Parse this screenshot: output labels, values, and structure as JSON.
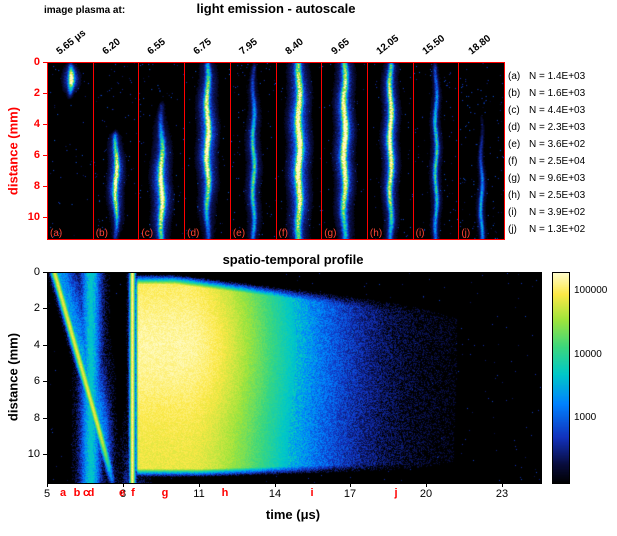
{
  "colors": {
    "accent_red": "#ff0000",
    "axis_black": "#000000",
    "panel_background": "#000000"
  },
  "top_panel": {
    "pre_title": "image plasma at:",
    "title": "light emission - autoscale",
    "ylabel": "distance (mm)",
    "yticks": [
      "0",
      "2",
      "4",
      "6",
      "8",
      "10"
    ],
    "frames": [
      {
        "tag": "(a)",
        "time_label": "5.65 μs",
        "n_value": "N = 1.4E+03",
        "streak": {
          "d0": 0.2,
          "d1": 2.2,
          "peak": 1.0,
          "sd": 0.55,
          "amp": 1.0,
          "core": 1.6,
          "halo": 5.0,
          "speckle": 0.006
        }
      },
      {
        "tag": "(b)",
        "time_label": "6.20",
        "n_value": "N = 1.6E+03",
        "streak": {
          "d0": 4.8,
          "d1": 11.3,
          "peak": 7.6,
          "sd": 2.0,
          "amp": 0.95,
          "core": 1.4,
          "halo": 5.0,
          "speckle": 0.01
        }
      },
      {
        "tag": "(c)",
        "time_label": "6.55",
        "n_value": "N = 4.4E+03",
        "streak": {
          "d0": 2.8,
          "d1": 11.4,
          "peak": 8.2,
          "sd": 2.6,
          "amp": 1.0,
          "core": 1.6,
          "halo": 6.0,
          "speckle": 0.01
        }
      },
      {
        "tag": "(d)",
        "time_label": "6.75",
        "n_value": "N = 2.3E+03",
        "streak": {
          "d0": 0.2,
          "d1": 11.4,
          "peak": 5.0,
          "sd": 3.6,
          "amp": 1.0,
          "core": 1.6,
          "halo": 6.0,
          "speckle": 0.008
        }
      },
      {
        "tag": "(e)",
        "time_label": "7.95",
        "n_value": "N = 3.6E+02",
        "streak": {
          "d0": 0.3,
          "d1": 11.4,
          "peak": 7.0,
          "sd": 4.0,
          "amp": 0.55,
          "core": 1.3,
          "halo": 5.0,
          "speckle": 0.012
        }
      },
      {
        "tag": "(f)",
        "time_label": "8.40",
        "n_value": "N = 2.5E+04",
        "streak": {
          "d0": 0.1,
          "d1": 11.4,
          "peak": 5.5,
          "sd": 5.0,
          "amp": 1.05,
          "core": 2.0,
          "halo": 7.0,
          "speckle": 0.008
        }
      },
      {
        "tag": "(g)",
        "time_label": "9.65",
        "n_value": "N = 9.6E+03",
        "streak": {
          "d0": 0.1,
          "d1": 11.4,
          "peak": 5.0,
          "sd": 4.6,
          "amp": 1.0,
          "core": 1.8,
          "halo": 6.0,
          "speckle": 0.008
        }
      },
      {
        "tag": "(h)",
        "time_label": "12.05",
        "n_value": "N = 2.5E+03",
        "streak": {
          "d0": 0.2,
          "d1": 11.4,
          "peak": 5.0,
          "sd": 4.4,
          "amp": 0.95,
          "core": 1.5,
          "halo": 5.0,
          "speckle": 0.008
        }
      },
      {
        "tag": "(i)",
        "time_label": "15.50",
        "n_value": "N = 3.9E+02",
        "streak": {
          "d0": 0.3,
          "d1": 11.4,
          "peak": 6.5,
          "sd": 4.5,
          "amp": 0.5,
          "core": 1.2,
          "halo": 4.0,
          "speckle": 0.014
        }
      },
      {
        "tag": "(j)",
        "time_label": "18.80",
        "n_value": "N = 1.3E+02",
        "streak": {
          "d0": 3.5,
          "d1": 11.4,
          "peak": 9.5,
          "sd": 3.0,
          "amp": 0.38,
          "core": 1.1,
          "halo": 3.5,
          "speckle": 0.016
        }
      }
    ]
  },
  "bottom_panel": {
    "title": "spatio-temporal profile",
    "xlabel": "time (μs)",
    "ylabel": "distance (mm)",
    "xticks": [
      "5",
      "8",
      "11",
      "14",
      "17",
      "20",
      "23"
    ],
    "yticks": [
      "0",
      "2",
      "4",
      "6",
      "8",
      "10"
    ],
    "markers": [
      {
        "letter": "a",
        "time_us": 5.65
      },
      {
        "letter": "b",
        "time_us": 6.2
      },
      {
        "letter": "c",
        "time_us": 6.55
      },
      {
        "letter": "d",
        "time_us": 6.75
      },
      {
        "letter": "e",
        "time_us": 7.95
      },
      {
        "letter": "f",
        "time_us": 8.4
      },
      {
        "letter": "g",
        "time_us": 9.65
      },
      {
        "letter": "h",
        "time_us": 12.05
      },
      {
        "letter": "i",
        "time_us": 15.5
      },
      {
        "letter": "j",
        "time_us": 18.8
      }
    ],
    "colorbar_ticks": [
      "100000",
      "10000",
      "1000"
    ]
  },
  "chart_data": [
    {
      "type": "heatmap",
      "title": "spatio-temporal profile",
      "xlabel": "time (μs)",
      "ylabel": "distance (mm)",
      "x_range": [
        5,
        24.5
      ],
      "y_range_mm": [
        0,
        11.5
      ],
      "grid": false,
      "colorbar": {
        "scale": "log",
        "ticks": [
          1000,
          10000,
          100000
        ],
        "approx_range": [
          100,
          200000
        ],
        "position": "right"
      },
      "annotations": [
        {
          "text": "a",
          "x_us": 5.65
        },
        {
          "text": "b",
          "x_us": 6.2
        },
        {
          "text": "c",
          "x_us": 6.55
        },
        {
          "text": "d",
          "x_us": 6.75
        },
        {
          "text": "e",
          "x_us": 7.95
        },
        {
          "text": "f",
          "x_us": 8.4
        },
        {
          "text": "g",
          "x_us": 9.65
        },
        {
          "text": "h",
          "x_us": 12.05
        },
        {
          "text": "i",
          "x_us": 15.5
        },
        {
          "text": "j",
          "x_us": 18.8
        }
      ],
      "features": [
        "ignition front sweeps from 0 mm at ~5.3 μs down to ~11 mm at ~7.6 μs (bright diagonal line with blue wake)",
        "cyan vertical band across all depths near 6.6-6.8 μs",
        "dark gap with black blob at 7.4-8.1 μs below ~6 mm",
        "very bright narrow vertical flash at ~8.3 μs spanning all depths",
        "broad intense emission plateau (~100000 counts) from ~8.5 to ~11 μs decaying through green (~14 μs) and blue (~17 μs) to speckled black by ~20 μs",
        "dark wedge grows from the top edge after ~10 μs; bottom edge (>11 mm) mostly dark"
      ]
    },
    {
      "type": "heatmap",
      "title": "light emission - autoscale",
      "subtitle": "image plasma at:",
      "ylabel": "distance (mm)",
      "y_range_mm": [
        0,
        11.5
      ],
      "frames": [
        {
          "label": "(a)",
          "time_us": 5.65,
          "N": 1400
        },
        {
          "label": "(b)",
          "time_us": 6.2,
          "N": 1600
        },
        {
          "label": "(c)",
          "time_us": 6.55,
          "N": 4400
        },
        {
          "label": "(d)",
          "time_us": 6.75,
          "N": 2300
        },
        {
          "label": "(e)",
          "time_us": 7.95,
          "N": 360
        },
        {
          "label": "(f)",
          "time_us": 8.4,
          "N": 25000
        },
        {
          "label": "(g)",
          "time_us": 9.65,
          "N": 9600
        },
        {
          "label": "(h)",
          "time_us": 12.05,
          "N": 2500
        },
        {
          "label": "(i)",
          "time_us": 15.5,
          "N": 390
        },
        {
          "label": "(j)",
          "time_us": 18.8,
          "N": 130
        }
      ]
    }
  ],
  "render": {
    "colormap_stops": [
      [
        0.0,
        [
          0,
          0,
          0
        ]
      ],
      [
        0.09,
        [
          8,
          12,
          60
        ]
      ],
      [
        0.22,
        [
          18,
          50,
          190
        ]
      ],
      [
        0.38,
        [
          0,
          130,
          255
        ]
      ],
      [
        0.52,
        [
          0,
          200,
          200
        ]
      ],
      [
        0.65,
        [
          60,
          215,
          125
        ]
      ],
      [
        0.78,
        [
          160,
          228,
          60
        ]
      ],
      [
        0.9,
        [
          252,
          232,
          70
        ]
      ],
      [
        1.0,
        [
          255,
          252,
          200
        ]
      ]
    ],
    "heatmap": {
      "t_range": [
        5,
        24.5
      ],
      "d_range": [
        0,
        11.5
      ],
      "front_t0": 5.25,
      "front_dt": 2.35,
      "band_t": 6.68,
      "gap_t": 7.78,
      "fline_t": 8.32,
      "main_t0": 8.42,
      "main_t1": 10.3,
      "main_fall": 3.9
    }
  }
}
